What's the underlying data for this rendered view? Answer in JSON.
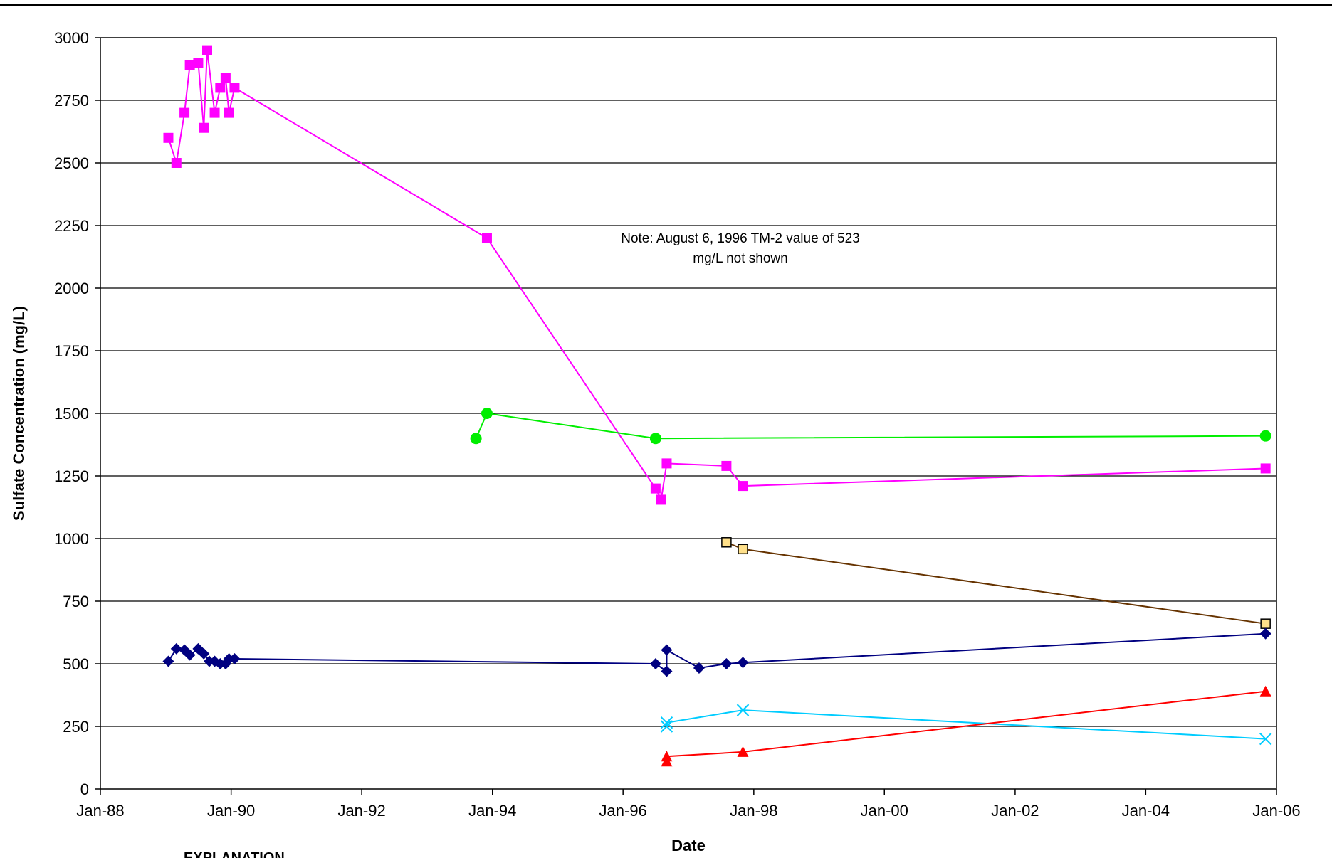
{
  "chart_data": {
    "type": "line",
    "title": "",
    "xlabel": "Date",
    "ylabel": "Sulfate Concentration (mg/L)",
    "x_is_date": true,
    "xlim": [
      "1988-01-01",
      "2006-01-01"
    ],
    "ylim": [
      0,
      3000
    ],
    "x_tick_labels": [
      "Jan-88",
      "Jan-90",
      "Jan-92",
      "Jan-94",
      "Jan-96",
      "Jan-98",
      "Jan-00",
      "Jan-02",
      "Jan-04",
      "Jan-06"
    ],
    "x_tick_dates": [
      "1988-01-01",
      "1990-01-01",
      "1992-01-01",
      "1994-01-01",
      "1996-01-01",
      "1998-01-01",
      "2000-01-01",
      "2002-01-01",
      "2004-01-01",
      "2006-01-01"
    ],
    "y_ticks": [
      0,
      250,
      500,
      750,
      1000,
      1250,
      1500,
      1750,
      2000,
      2250,
      2500,
      2750,
      3000
    ],
    "grid": "horizontal",
    "annotation": "Note: August 6, 1996 TM-2 value of 523 mg/L not shown",
    "legend_heading": "EXPLANATION",
    "series": [
      {
        "color": "#ff00ff",
        "marker": "square",
        "points": [
          [
            "1989-01-15",
            2600
          ],
          [
            "1989-03-01",
            2500
          ],
          [
            "1989-04-15",
            2700
          ],
          [
            "1989-05-15",
            2890
          ],
          [
            "1989-07-01",
            2900
          ],
          [
            "1989-08-01",
            2640
          ],
          [
            "1989-08-20",
            2950
          ],
          [
            "1989-10-01",
            2700
          ],
          [
            "1989-11-01",
            2800
          ],
          [
            "1989-12-01",
            2840
          ],
          [
            "1989-12-20",
            2700
          ],
          [
            "1990-01-20",
            2800
          ],
          [
            "1993-12-01",
            2200
          ],
          [
            "1996-07-01",
            1200
          ],
          [
            "1996-08-01",
            1155
          ],
          [
            "1996-09-01",
            1300
          ],
          [
            "1997-08-01",
            1290
          ],
          [
            "1997-11-01",
            1210
          ],
          [
            "2005-11-01",
            1280
          ]
        ]
      },
      {
        "color": "#00ee00",
        "marker": "circle",
        "points": [
          [
            "1993-10-01",
            1400
          ],
          [
            "1993-12-01",
            1500
          ],
          [
            "1996-07-01",
            1400
          ],
          [
            "2005-11-01",
            1410
          ]
        ]
      },
      {
        "color": "#663300",
        "marker_fill": "#ffe08a",
        "marker": "open-square",
        "points": [
          [
            "1997-08-01",
            985
          ],
          [
            "1997-11-01",
            958
          ],
          [
            "2005-11-01",
            660
          ]
        ]
      },
      {
        "color": "#000080",
        "marker": "diamond",
        "points": [
          [
            "1989-01-15",
            510
          ],
          [
            "1989-03-01",
            560
          ],
          [
            "1989-04-15",
            555
          ],
          [
            "1989-05-15",
            535
          ],
          [
            "1989-07-01",
            560
          ],
          [
            "1989-08-01",
            540
          ],
          [
            "1989-09-01",
            510
          ],
          [
            "1989-10-01",
            510
          ],
          [
            "1989-11-01",
            500
          ],
          [
            "1989-12-01",
            500
          ],
          [
            "1989-12-20",
            520
          ],
          [
            "1990-01-20",
            520
          ],
          [
            "1996-07-01",
            500
          ],
          [
            "1996-09-01",
            470
          ],
          [
            "1996-09-01",
            555
          ],
          [
            "1997-03-01",
            483
          ],
          [
            "1997-08-01",
            500
          ],
          [
            "1997-11-01",
            505
          ],
          [
            "2005-11-01",
            620
          ]
        ]
      },
      {
        "color": "#00ccff",
        "marker": "x",
        "points": [
          [
            "1996-09-01",
            250
          ],
          [
            "1996-09-01",
            265
          ],
          [
            "1997-11-01",
            315
          ],
          [
            "2005-11-01",
            200
          ]
        ]
      },
      {
        "color": "#ff0000",
        "marker": "triangle",
        "points": [
          [
            "1996-09-01",
            110
          ],
          [
            "1996-09-01",
            130
          ],
          [
            "1997-11-01",
            148
          ],
          [
            "2005-11-01",
            390
          ]
        ]
      }
    ]
  }
}
